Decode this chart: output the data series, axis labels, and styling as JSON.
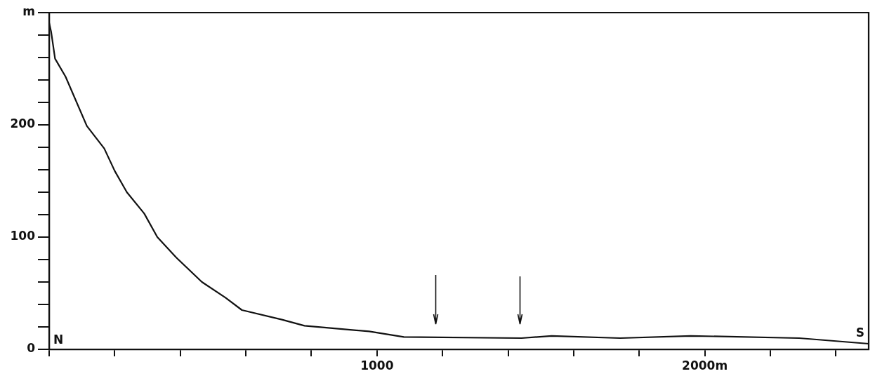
{
  "chart_data": {
    "type": "line",
    "x": [
      0,
      6,
      18,
      50,
      115,
      168,
      200,
      237,
      290,
      330,
      387,
      466,
      538,
      588,
      710,
      779,
      976,
      1082,
      1441,
      1533,
      1742,
      1957,
      2288,
      2500
    ],
    "series": [
      {
        "color": "#111111",
        "values": [
          291,
          283,
          259,
          243,
          199,
          179,
          159,
          140,
          121,
          100,
          82,
          60,
          46,
          35,
          26.5,
          21,
          16,
          11,
          10,
          12,
          10,
          12,
          10,
          5
        ]
      }
    ],
    "xlim": [
      0,
      2500
    ],
    "xticks": [
      {
        "value": 0,
        "label": null
      },
      {
        "value": 200,
        "label": null
      },
      {
        "value": 400,
        "label": null
      },
      {
        "value": 600,
        "label": null
      },
      {
        "value": 800,
        "label": null
      },
      1000,
      {
        "value": 1200,
        "label": null
      },
      {
        "value": 1400,
        "label": null
      },
      {
        "value": 1600,
        "label": null
      },
      {
        "value": 1800,
        "label": null
      },
      {
        "value": 2000,
        "label": "2000m"
      },
      {
        "value": 2200,
        "label": null
      },
      {
        "value": 2400,
        "label": null
      }
    ],
    "ylim": [
      0,
      300
    ],
    "yticks": [
      0,
      {
        "value": 20,
        "label": null
      },
      {
        "value": 40,
        "label": null
      },
      {
        "value": 60,
        "label": null
      },
      {
        "value": 80,
        "label": null
      },
      100,
      {
        "value": 120,
        "label": null
      },
      {
        "value": 140,
        "label": null
      },
      {
        "value": 160,
        "label": null
      },
      {
        "value": 180,
        "label": null
      },
      200,
      {
        "value": 220,
        "label": null
      },
      {
        "value": 240,
        "label": null
      },
      {
        "value": 260,
        "label": null
      },
      {
        "value": 280,
        "label": null
      },
      {
        "value": 300,
        "label": "m"
      }
    ],
    "annotations": [
      "N",
      "S"
    ],
    "grid": false,
    "legend": false,
    "marker": "none",
    "line_style": "solid"
  }
}
